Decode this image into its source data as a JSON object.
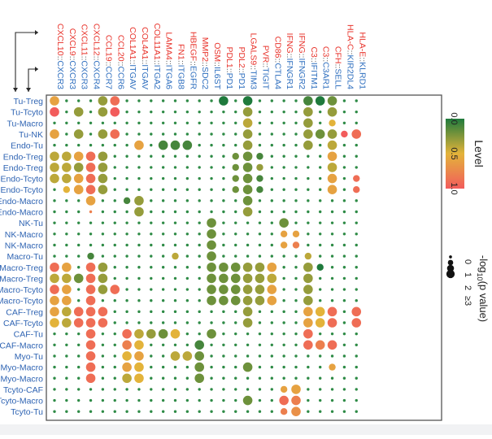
{
  "chart_data": {
    "type": "scatter",
    "title": "",
    "colors": {
      "ligand": "#e8342c",
      "receptor": "#2f6fbf",
      "row_label": "#2f64b3",
      "dot_small": "#2e8b46",
      "scale_low": "#1f7a3c",
      "scale_mid": "#e3b33a",
      "scale_high": "#f25c5c"
    },
    "columns": [
      {
        "ligand": "CXCL10",
        "receptor": "CXCR3"
      },
      {
        "ligand": "CXCL9",
        "receptor": "CXCR3"
      },
      {
        "ligand": "CXCL11",
        "receptor": "CXCR3"
      },
      {
        "ligand": "CXCL12",
        "receptor": "CXCR4"
      },
      {
        "ligand": "CCL19",
        "receptor": "CCR7"
      },
      {
        "ligand": "CCL20",
        "receptor": "CCR6"
      },
      {
        "ligand": "COL1A1",
        "receptor": "ITGAV"
      },
      {
        "ligand": "COL4A1",
        "receptor": "ITGAV"
      },
      {
        "ligand": "COL11A1",
        "receptor": "ITGA2"
      },
      {
        "ligand": "LAMA4",
        "receptor": "ITGA6"
      },
      {
        "ligand": "FN1",
        "receptor": "ITGB8"
      },
      {
        "ligand": "HBEGF",
        "receptor": "EGFR"
      },
      {
        "ligand": "MMP2",
        "receptor": "SDC2"
      },
      {
        "ligand": "OSM",
        "receptor": "IL6ST"
      },
      {
        "ligand": "PDL1",
        "receptor": "PD1"
      },
      {
        "ligand": "PDL2",
        "receptor": "PD1"
      },
      {
        "ligand": "LGALS9",
        "receptor": "TIM3"
      },
      {
        "ligand": "PVR",
        "receptor": "TIGIT"
      },
      {
        "ligand": "CD86",
        "receptor": "CTLA4"
      },
      {
        "ligand": "IFNG",
        "receptor": "IFNGR1"
      },
      {
        "ligand": "IFNG",
        "receptor": "IFNGR2"
      },
      {
        "ligand": "C3",
        "receptor": "IFITM1"
      },
      {
        "ligand": "C3",
        "receptor": "C3AR1"
      },
      {
        "ligand": "CFH",
        "receptor": "SELL"
      },
      {
        "ligand": "HLA-C",
        "receptor": "KIR2DL4"
      },
      {
        "ligand": "HLA-E",
        "receptor": "KLRD1"
      }
    ],
    "column_separator": "::",
    "rows": [
      "Tu-Treg",
      "Tu-Tcyto",
      "Tu-Macro",
      "Tu-NK",
      "Endo-Tu",
      "Endo-Treg",
      "Endo-Treg",
      "Endo-Tcyto",
      "Endo-Tcyto",
      "Endo-Macro",
      "Endo-Macro",
      "NK-Tu",
      "NK-Macro",
      "NK-Macro",
      "Macro-Tu",
      "Macro-Treg",
      "Macro-Treg",
      "Macro-Tcyto",
      "Macro-Tcyto",
      "CAF-Treg",
      "CAF-Tcyto",
      "CAF-Tu",
      "CAF-Macro",
      "Myo-Tu",
      "Myo-Macro",
      "Myo-Macro",
      "Tcyto-CAF",
      "Tcyto-Macro",
      "Tcyto-Tu"
    ],
    "row_label_separator": "-",
    "points_note": "Each non-background dot: [row_index, column_index, level (0-1), -log10 p-value size class (0,1,2,3 meaning >=3)]. All other cells show the smallest green dot.",
    "points": [
      [
        0,
        0,
        0.6,
        2
      ],
      [
        0,
        4,
        0.3,
        2
      ],
      [
        0,
        5,
        0.9,
        2
      ],
      [
        0,
        14,
        0.0,
        2
      ],
      [
        0,
        16,
        0.0,
        2
      ],
      [
        0,
        21,
        0.1,
        2
      ],
      [
        0,
        22,
        0.0,
        2
      ],
      [
        0,
        23,
        0.2,
        2
      ],
      [
        1,
        0,
        1.0,
        2
      ],
      [
        1,
        2,
        0.3,
        2
      ],
      [
        1,
        4,
        0.3,
        2
      ],
      [
        1,
        5,
        1.0,
        2
      ],
      [
        1,
        16,
        0.3,
        2
      ],
      [
        1,
        21,
        0.3,
        2
      ],
      [
        1,
        23,
        0.3,
        2
      ],
      [
        2,
        16,
        0.4,
        2
      ],
      [
        2,
        21,
        0.3,
        2
      ],
      [
        2,
        23,
        0.5,
        1
      ],
      [
        3,
        0,
        0.6,
        2
      ],
      [
        3,
        2,
        0.3,
        2
      ],
      [
        3,
        4,
        0.3,
        2
      ],
      [
        3,
        5,
        0.9,
        2
      ],
      [
        3,
        16,
        0.3,
        2
      ],
      [
        3,
        21,
        0.3,
        2
      ],
      [
        3,
        22,
        0.2,
        2
      ],
      [
        3,
        23,
        0.3,
        2
      ],
      [
        3,
        24,
        1.0,
        1
      ],
      [
        3,
        25,
        0.9,
        2
      ],
      [
        4,
        7,
        0.6,
        2
      ],
      [
        4,
        9,
        0.1,
        2
      ],
      [
        4,
        10,
        0.1,
        2
      ],
      [
        4,
        11,
        0.1,
        2
      ],
      [
        4,
        16,
        0.3,
        2
      ],
      [
        4,
        21,
        0.3,
        2
      ],
      [
        4,
        23,
        0.4,
        2
      ],
      [
        5,
        0,
        0.4,
        2
      ],
      [
        5,
        1,
        0.4,
        2
      ],
      [
        5,
        2,
        0.6,
        2
      ],
      [
        5,
        3,
        0.9,
        2
      ],
      [
        5,
        4,
        0.3,
        2
      ],
      [
        5,
        15,
        0.2,
        1
      ],
      [
        5,
        16,
        0.2,
        2
      ],
      [
        5,
        17,
        0.1,
        1
      ],
      [
        5,
        23,
        0.6,
        2
      ],
      [
        6,
        0,
        0.4,
        2
      ],
      [
        6,
        1,
        0.4,
        2
      ],
      [
        6,
        2,
        0.3,
        2
      ],
      [
        6,
        3,
        0.9,
        2
      ],
      [
        6,
        4,
        0.3,
        2
      ],
      [
        6,
        15,
        0.2,
        1
      ],
      [
        6,
        16,
        0.2,
        2
      ],
      [
        6,
        17,
        0.3,
        1
      ],
      [
        6,
        23,
        0.4,
        2
      ],
      [
        7,
        0,
        0.4,
        2
      ],
      [
        7,
        1,
        0.4,
        2
      ],
      [
        7,
        2,
        0.6,
        2
      ],
      [
        7,
        3,
        0.9,
        2
      ],
      [
        7,
        4,
        0.3,
        2
      ],
      [
        7,
        15,
        0.2,
        1
      ],
      [
        7,
        16,
        0.2,
        2
      ],
      [
        7,
        17,
        0.1,
        1
      ],
      [
        7,
        23,
        0.6,
        2
      ],
      [
        7,
        25,
        0.9,
        1
      ],
      [
        8,
        1,
        0.5,
        1
      ],
      [
        8,
        2,
        0.6,
        2
      ],
      [
        8,
        3,
        0.9,
        2
      ],
      [
        8,
        4,
        0.3,
        2
      ],
      [
        8,
        15,
        0.2,
        1
      ],
      [
        8,
        16,
        0.2,
        2
      ],
      [
        8,
        17,
        0.1,
        1
      ],
      [
        8,
        23,
        0.6,
        2
      ],
      [
        8,
        25,
        0.9,
        1
      ],
      [
        9,
        3,
        0.6,
        2
      ],
      [
        9,
        6,
        0.1,
        1
      ],
      [
        9,
        7,
        0.3,
        2
      ],
      [
        9,
        16,
        0.2,
        2
      ],
      [
        10,
        3,
        0.8,
        0
      ],
      [
        10,
        7,
        0.3,
        2
      ],
      [
        10,
        16,
        0.3,
        2
      ],
      [
        11,
        13,
        0.2,
        2
      ],
      [
        11,
        19,
        0.2,
        2
      ],
      [
        12,
        13,
        0.2,
        2
      ],
      [
        12,
        19,
        0.6,
        1
      ],
      [
        12,
        20,
        0.6,
        1
      ],
      [
        13,
        13,
        0.2,
        2
      ],
      [
        13,
        19,
        0.6,
        1
      ],
      [
        13,
        20,
        0.8,
        1
      ],
      [
        14,
        3,
        0.1,
        1
      ],
      [
        14,
        10,
        0.4,
        1
      ],
      [
        14,
        13,
        0.2,
        2
      ],
      [
        14,
        21,
        0.4,
        1
      ],
      [
        15,
        0,
        0.9,
        2
      ],
      [
        15,
        1,
        0.6,
        2
      ],
      [
        15,
        3,
        0.9,
        2
      ],
      [
        15,
        4,
        0.3,
        2
      ],
      [
        15,
        13,
        0.2,
        2
      ],
      [
        15,
        14,
        0.2,
        2
      ],
      [
        15,
        15,
        0.2,
        2
      ],
      [
        15,
        16,
        0.3,
        2
      ],
      [
        15,
        17,
        0.3,
        2
      ],
      [
        15,
        18,
        0.6,
        2
      ],
      [
        15,
        21,
        0.3,
        2
      ],
      [
        15,
        22,
        0.0,
        1
      ],
      [
        16,
        0,
        0.4,
        2
      ],
      [
        16,
        1,
        0.4,
        2
      ],
      [
        16,
        2,
        0.2,
        2
      ],
      [
        16,
        3,
        0.9,
        2
      ],
      [
        16,
        4,
        0.3,
        2
      ],
      [
        16,
        13,
        0.2,
        2
      ],
      [
        16,
        14,
        0.2,
        2
      ],
      [
        16,
        15,
        0.2,
        2
      ],
      [
        16,
        16,
        0.3,
        2
      ],
      [
        16,
        17,
        0.3,
        2
      ],
      [
        16,
        18,
        0.4,
        2
      ],
      [
        16,
        21,
        0.3,
        2
      ],
      [
        17,
        0,
        0.9,
        2
      ],
      [
        17,
        1,
        0.6,
        2
      ],
      [
        17,
        3,
        0.9,
        2
      ],
      [
        17,
        4,
        0.3,
        2
      ],
      [
        17,
        5,
        0.9,
        2
      ],
      [
        17,
        13,
        0.2,
        2
      ],
      [
        17,
        14,
        0.2,
        2
      ],
      [
        17,
        15,
        0.2,
        2
      ],
      [
        17,
        16,
        0.3,
        2
      ],
      [
        17,
        17,
        0.3,
        2
      ],
      [
        17,
        18,
        0.6,
        2
      ],
      [
        17,
        21,
        0.3,
        2
      ],
      [
        18,
        0,
        0.6,
        2
      ],
      [
        18,
        1,
        0.6,
        2
      ],
      [
        18,
        3,
        0.9,
        2
      ],
      [
        18,
        13,
        0.2,
        2
      ],
      [
        18,
        14,
        0.2,
        2
      ],
      [
        18,
        15,
        0.2,
        2
      ],
      [
        18,
        16,
        0.3,
        2
      ],
      [
        18,
        17,
        0.3,
        2
      ],
      [
        18,
        18,
        0.6,
        2
      ],
      [
        18,
        21,
        0.3,
        2
      ],
      [
        19,
        0,
        0.6,
        2
      ],
      [
        19,
        1,
        0.4,
        2
      ],
      [
        19,
        2,
        0.9,
        2
      ],
      [
        19,
        3,
        0.9,
        2
      ],
      [
        19,
        4,
        0.9,
        2
      ],
      [
        19,
        16,
        0.3,
        2
      ],
      [
        19,
        21,
        0.6,
        2
      ],
      [
        19,
        22,
        0.5,
        2
      ],
      [
        19,
        23,
        0.9,
        2
      ],
      [
        19,
        25,
        0.9,
        2
      ],
      [
        20,
        0,
        0.5,
        2
      ],
      [
        20,
        1,
        0.4,
        2
      ],
      [
        20,
        2,
        0.9,
        2
      ],
      [
        20,
        3,
        0.9,
        2
      ],
      [
        20,
        4,
        0.9,
        2
      ],
      [
        20,
        16,
        0.3,
        2
      ],
      [
        20,
        21,
        0.6,
        2
      ],
      [
        20,
        22,
        0.5,
        2
      ],
      [
        20,
        23,
        0.9,
        2
      ],
      [
        20,
        25,
        0.9,
        2
      ],
      [
        21,
        3,
        0.9,
        2
      ],
      [
        21,
        6,
        0.9,
        2
      ],
      [
        21,
        7,
        0.4,
        2
      ],
      [
        21,
        8,
        0.3,
        2
      ],
      [
        21,
        9,
        0.2,
        2
      ],
      [
        21,
        10,
        0.5,
        2
      ],
      [
        21,
        13,
        0.2,
        2
      ],
      [
        21,
        21,
        0.9,
        2
      ],
      [
        22,
        3,
        0.9,
        2
      ],
      [
        22,
        6,
        0.8,
        2
      ],
      [
        22,
        7,
        0.5,
        2
      ],
      [
        22,
        12,
        0.1,
        2
      ],
      [
        22,
        21,
        0.9,
        2
      ],
      [
        22,
        22,
        0.8,
        2
      ],
      [
        22,
        23,
        0.9,
        2
      ],
      [
        23,
        3,
        0.9,
        2
      ],
      [
        23,
        6,
        0.5,
        2
      ],
      [
        23,
        7,
        0.6,
        2
      ],
      [
        23,
        10,
        0.4,
        2
      ],
      [
        23,
        11,
        0.4,
        2
      ],
      [
        23,
        12,
        0.2,
        2
      ],
      [
        24,
        3,
        0.9,
        2
      ],
      [
        24,
        6,
        0.6,
        2
      ],
      [
        24,
        7,
        0.5,
        2
      ],
      [
        24,
        12,
        0.2,
        2
      ],
      [
        24,
        16,
        0.2,
        2
      ],
      [
        24,
        23,
        0.6,
        1
      ],
      [
        25,
        3,
        0.9,
        2
      ],
      [
        25,
        6,
        0.4,
        2
      ],
      [
        25,
        7,
        0.5,
        2
      ],
      [
        25,
        12,
        0.2,
        2
      ],
      [
        26,
        19,
        0.6,
        1
      ],
      [
        26,
        20,
        0.6,
        2
      ],
      [
        27,
        16,
        0.2,
        2
      ],
      [
        27,
        19,
        0.9,
        2
      ],
      [
        27,
        20,
        0.8,
        2
      ],
      [
        28,
        19,
        0.8,
        1
      ],
      [
        28,
        20,
        0.7,
        2
      ]
    ],
    "legend": {
      "color_title": "Level",
      "color_ticks": [
        "0.0",
        "0.5",
        "1.0"
      ],
      "color_range": [
        0,
        1
      ],
      "size_title_prefix": "-log",
      "size_title_sub": "10",
      "size_title_suffix": "(p value)",
      "size_labels": [
        "0",
        "1",
        "2",
        "≥3"
      ],
      "placement": "right"
    }
  }
}
